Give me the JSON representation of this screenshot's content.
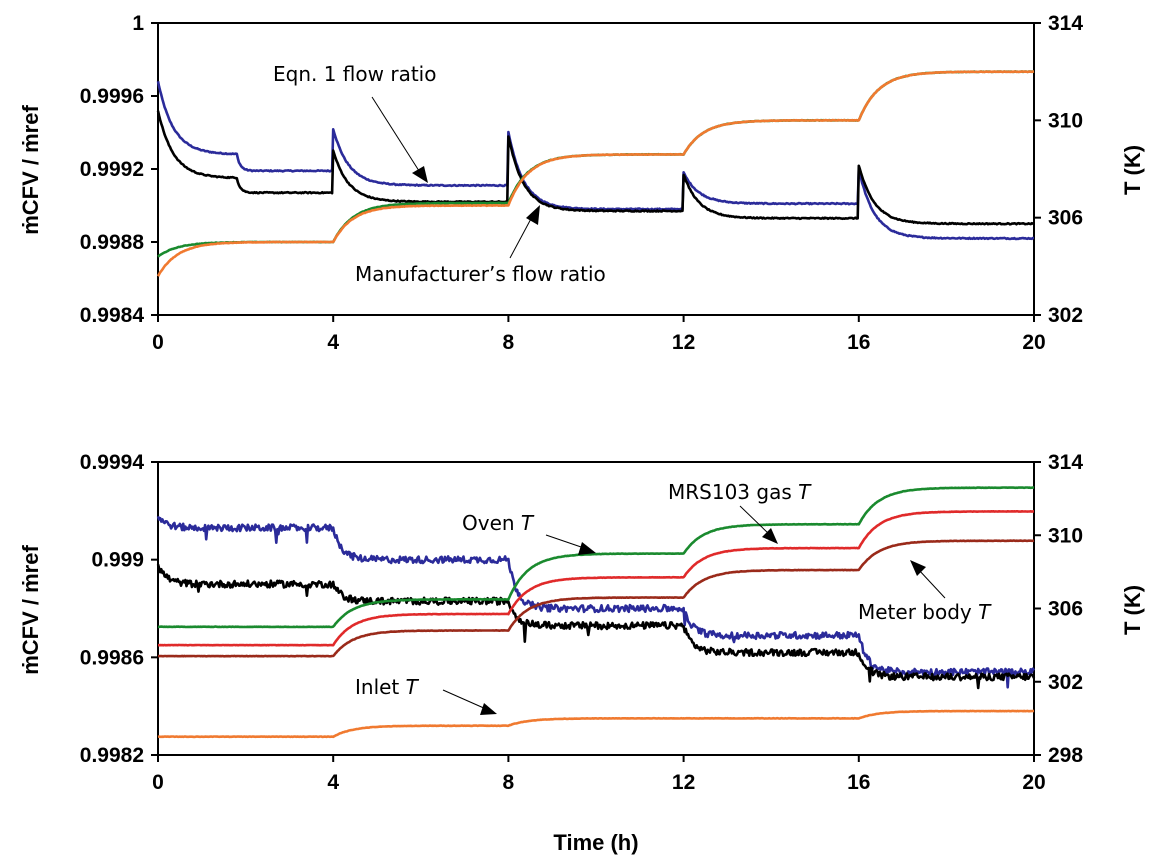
{
  "colors": {
    "eqn": "#2b2b9a",
    "manufacturer": "#000000",
    "oven": "#1a8a2e",
    "mrs_gas": "#e02a2a",
    "meter_body": "#9a2a1a",
    "inlet": "#f07a30",
    "orange_top": "#f07a30",
    "green_top": "#1a8a2e"
  },
  "chart_data": [
    {
      "type": "line",
      "title": "",
      "xlabel": "",
      "ylabel_left": "ṁCFV / ṁref",
      "ylabel_right": "T (K)",
      "xlim": [
        0,
        20
      ],
      "ylim_left": [
        0.9984,
        1
      ],
      "ylim_right": [
        302,
        314
      ],
      "x_ticks": [
        "0",
        "4",
        "8",
        "12",
        "16",
        "20"
      ],
      "y_left_ticks": [
        "0.9984",
        "0.9988",
        "0.9992",
        "0.9996",
        "1"
      ],
      "y_right_ticks": [
        "302",
        "306",
        "310",
        "314"
      ],
      "annotations": {
        "eqn": "Eqn. 1 flow ratio",
        "manufacturer": "Manufacturer’s flow ratio"
      },
      "series": [
        {
          "key": "eqn",
          "axis": "left",
          "levels": [
            0.99928,
            0.99919,
            0.99911,
            0.99898,
            0.99901,
            0.99882
          ],
          "start": 0.99968,
          "spikes": [
            0.99942,
            0.9994,
            0.99918,
            0.9992
          ]
        },
        {
          "key": "manufacturer",
          "axis": "left",
          "levels": [
            0.99915,
            0.99907,
            0.99902,
            0.99897,
            0.99893,
            0.9989
          ],
          "start": 0.99952,
          "spikes": [
            0.9993,
            0.99938,
            0.99917,
            0.99922
          ]
        },
        {
          "key": "green_top",
          "axis": "right",
          "levels": [
            305.0,
            306.6,
            308.6,
            310.0,
            312.0
          ],
          "start": 304.4
        },
        {
          "key": "orange_top",
          "axis": "right",
          "levels": [
            305.0,
            306.5,
            308.6,
            310.0,
            312.0
          ],
          "start": 303.6
        }
      ]
    },
    {
      "type": "line",
      "title": "",
      "xlabel": "Time (h)",
      "ylabel_left": "ṁCFV / ṁref",
      "ylabel_right": "T (K)",
      "xlim": [
        0,
        20
      ],
      "ylim_left": [
        0.9982,
        0.9994
      ],
      "ylim_right": [
        298,
        314
      ],
      "x_ticks": [
        "0",
        "4",
        "8",
        "12",
        "16",
        "20"
      ],
      "y_left_ticks": [
        "0.9982",
        "0.9986",
        "0.999",
        "0.9994"
      ],
      "y_right_ticks": [
        "298",
        "302",
        "306",
        "310",
        "314"
      ],
      "annotations": {
        "oven": "Oven",
        "mrs_gas": "MRS103 gas",
        "meter_body": "Meter body",
        "inlet": "Inlet",
        "t_symbol": "T"
      },
      "series": [
        {
          "key": "eqn",
          "axis": "left",
          "levels": [
            0.99913,
            0.999,
            0.9988,
            0.99869,
            0.99854
          ],
          "start": 0.99918
        },
        {
          "key": "manufacturer",
          "axis": "left",
          "levels": [
            0.9989,
            0.99883,
            0.99873,
            0.99862,
            0.99852
          ],
          "start": 0.99898
        },
        {
          "key": "oven",
          "axis": "right",
          "levels": [
            305.0,
            306.5,
            309.0,
            310.6,
            312.6
          ]
        },
        {
          "key": "mrs_gas",
          "axis": "right",
          "levels": [
            304.0,
            305.7,
            307.7,
            309.3,
            311.3
          ]
        },
        {
          "key": "meter_body",
          "axis": "right",
          "levels": [
            303.4,
            304.8,
            306.6,
            308.1,
            309.7
          ]
        },
        {
          "key": "inlet",
          "axis": "right",
          "levels": [
            299.0,
            299.6,
            300.0,
            300.0,
            300.4
          ]
        }
      ]
    }
  ]
}
